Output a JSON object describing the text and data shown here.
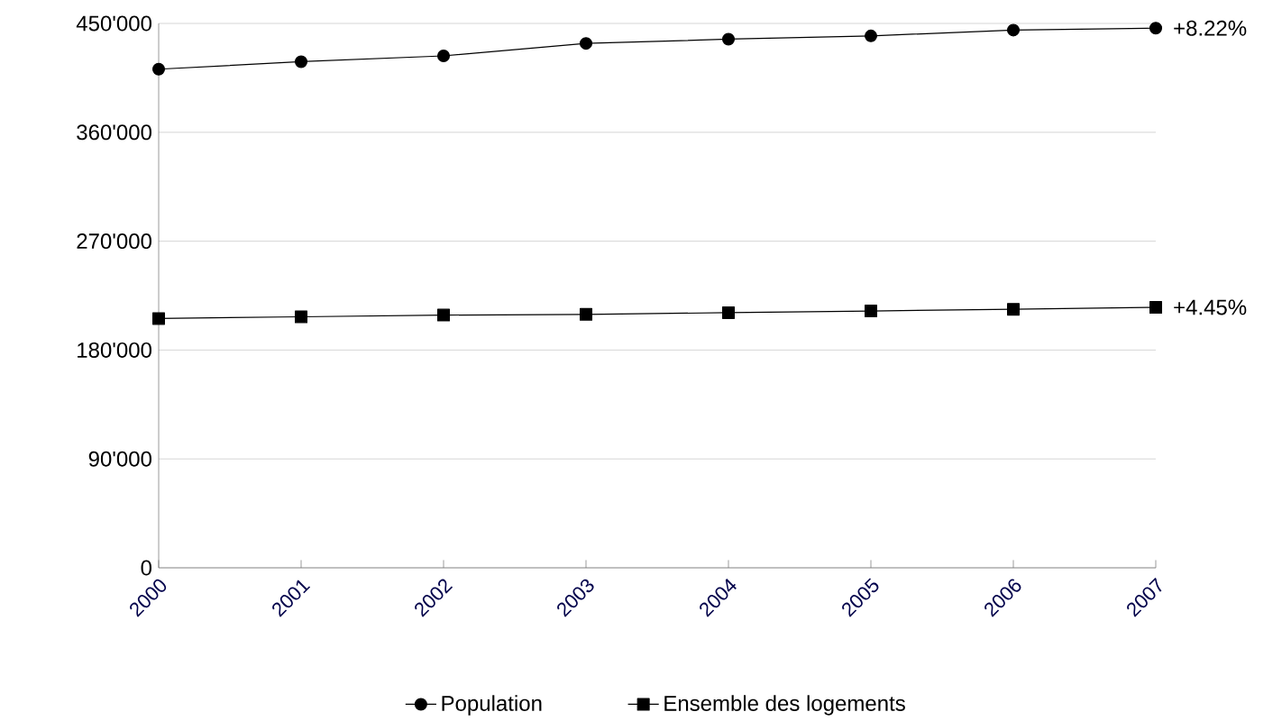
{
  "chart_data": {
    "type": "line",
    "categories": [
      "2000",
      "2001",
      "2002",
      "2003",
      "2004",
      "2005",
      "2006",
      "2007"
    ],
    "series": [
      {
        "name": "Population",
        "color": "#000000",
        "marker": "circle",
        "values": [
          412200,
          418400,
          423200,
          433500,
          437000,
          439700,
          444500,
          446100
        ]
      },
      {
        "name": "Ensemble des logements",
        "color": "#000000",
        "marker": "square",
        "values": [
          206100,
          207500,
          208900,
          209500,
          210900,
          212300,
          213700,
          215300
        ]
      }
    ],
    "ylim": [
      0,
      450000
    ],
    "yticks": [
      0,
      {
        "value": 90000,
        "label": "90'000"
      },
      {
        "value": 180000,
        "label": "180'000"
      },
      {
        "value": 270000,
        "label": "270'000"
      },
      {
        "value": 360000,
        "label": "360'000"
      },
      {
        "value": 450000,
        "label": "450'000"
      }
    ],
    "grid": "y",
    "legend": "bottom",
    "annotations": [
      {
        "text": "+8.22%",
        "x": "2007",
        "y": 446100
      },
      {
        "text": "+4.45%",
        "x": "2007",
        "y": 215300
      }
    ]
  }
}
